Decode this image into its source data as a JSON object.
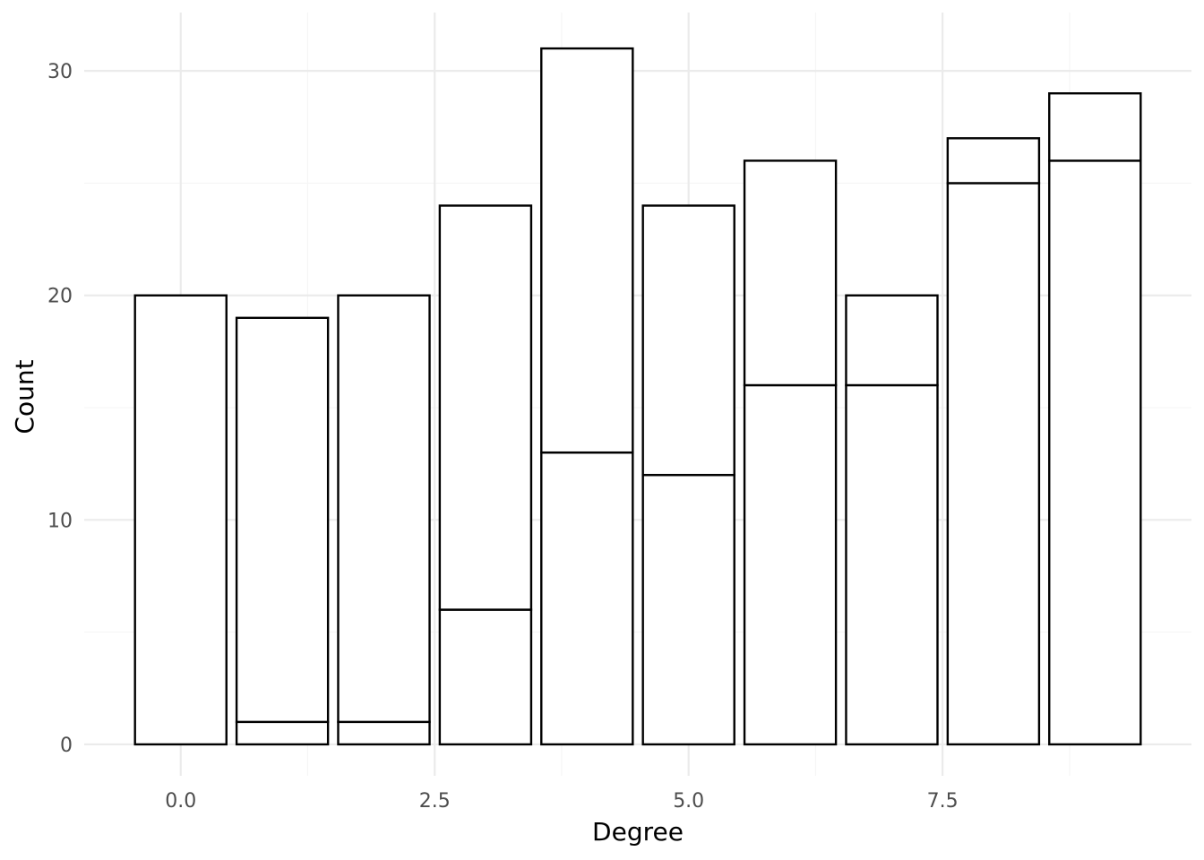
{
  "chart_data": {
    "type": "bar",
    "stacked": true,
    "xlabel": "Degree",
    "ylabel": "Count",
    "x": [
      0,
      1,
      2,
      3,
      4,
      5,
      6,
      7,
      8,
      9
    ],
    "series": [
      {
        "values": [
          0,
          1,
          1,
          6,
          13,
          12,
          16,
          16,
          25,
          26
        ]
      },
      {
        "values": [
          20,
          18,
          19,
          18,
          18,
          12,
          10,
          4,
          2,
          3
        ]
      }
    ],
    "totals": [
      20,
      19,
      20,
      24,
      31,
      24,
      26,
      20,
      27,
      29
    ],
    "xlim": [
      -0.95,
      9.95
    ],
    "ylim": [
      -1.4,
      32.6
    ],
    "x_ticks": [
      0,
      2.5,
      5,
      7.5
    ],
    "x_tick_labels": [
      "0.0",
      "2.5",
      "5.0",
      "7.5"
    ],
    "y_ticks": [
      0,
      10,
      20,
      30
    ],
    "y_tick_labels": [
      "0",
      "10",
      "20",
      "30"
    ],
    "grid": true,
    "legend": "none",
    "colors": {
      "bar_fill": "#ffffff",
      "bar_stroke": "#000000",
      "grid_major": "#ebebeb",
      "grid_minor": "#f5f5f5",
      "tick_text": "#4d4d4d"
    }
  }
}
